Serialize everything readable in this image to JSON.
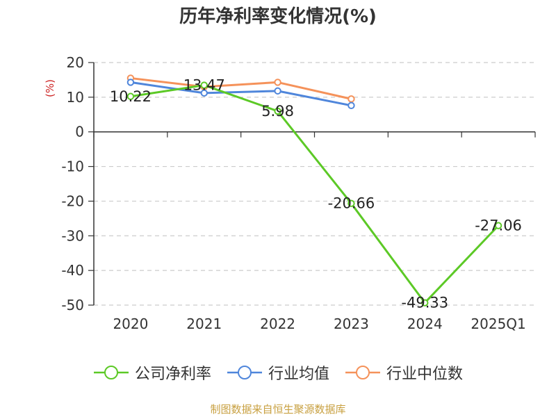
{
  "chart_data": {
    "type": "line",
    "title": "历年净利率变化情况(%)",
    "ylabel": "(%)",
    "categories": [
      "2020",
      "2021",
      "2022",
      "2023",
      "2024",
      "2025Q1"
    ],
    "ylim": [
      -50,
      20
    ],
    "yticks": [
      20,
      10,
      0,
      -10,
      -20,
      -30,
      -40,
      -50
    ],
    "grid": true,
    "legend_position": "bottom",
    "series": [
      {
        "name": "公司净利率",
        "color": "#5cc926",
        "values": [
          10.22,
          13.47,
          5.98,
          -20.66,
          -49.33,
          -27.06
        ],
        "data_labels": [
          "10.22",
          "13.47",
          "5.98",
          "-20.66",
          "-49.33",
          "-27.06"
        ]
      },
      {
        "name": "行业均值",
        "color": "#4f86db",
        "values": [
          14.3,
          11.2,
          11.8,
          7.6,
          null,
          null
        ]
      },
      {
        "name": "行业中位数",
        "color": "#f5925a",
        "values": [
          15.5,
          13.0,
          14.3,
          9.5,
          null,
          null
        ]
      }
    ]
  },
  "source_note": "制图数据来自恒生聚源数据库"
}
